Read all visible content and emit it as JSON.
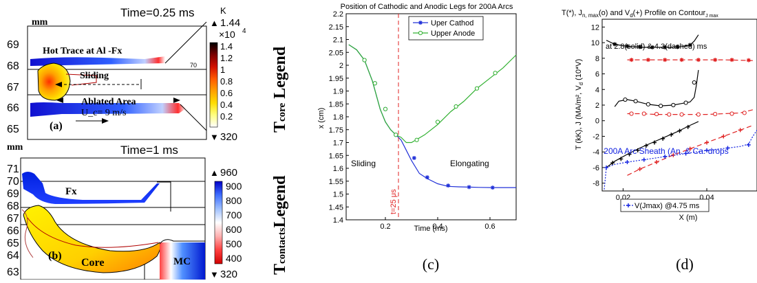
{
  "chart_data": [
    {
      "type": "heatmap",
      "panel": "(a)",
      "title": "Time=0.25 ms",
      "ylabel": "mm",
      "yticks": [
        "69",
        "68",
        "67",
        "66",
        "65"
      ],
      "annotations": [
        "Hot Trace at Al -Fx",
        "Sliding",
        "Ablated Area",
        "U_c= 9 m/s",
        "70"
      ],
      "colorbar": {
        "unit": "K",
        "max_label": "1.44",
        "multiplier": "×10",
        "exponent": "4",
        "ticks": [
          "1.4",
          "1.2",
          "1",
          "0.8",
          "0.6",
          "0.4",
          "0.2"
        ],
        "min_label": "320",
        "colors": [
          "#000000",
          "#7a0000",
          "#d21000",
          "#ff5a00",
          "#ffa000",
          "#ffdd00",
          "#ffff80",
          "#ffffff"
        ]
      }
    },
    {
      "type": "heatmap",
      "panel": "(b)",
      "title": "Time=1 ms",
      "ylabel": "mm",
      "yticks": [
        "71",
        "70",
        "69",
        "68",
        "67",
        "66",
        "65",
        "64",
        "63"
      ],
      "annotations": [
        "Fx",
        "Core",
        "MC"
      ],
      "colorbar": {
        "max_label": "960",
        "ticks": [
          "900",
          "800",
          "700",
          "600",
          "500",
          "400"
        ],
        "min_label": "320",
        "colors": [
          "#0000c8",
          "#3f6fff",
          "#9fc0ff",
          "#ffffff",
          "#ffb0b0",
          "#ff4040",
          "#d00000"
        ]
      }
    },
    {
      "type": "line",
      "panel": "(c)",
      "title": "Position of Cathodic and Anodic Legs for 200A Arcs",
      "xlabel": "Time (ms)",
      "ylabel": "x (cm)",
      "xlim": [
        0.05,
        0.7
      ],
      "ylim": [
        1.4,
        2.2
      ],
      "xticks": [
        0.2,
        0.4,
        0.6
      ],
      "yticks": [
        1.4,
        1.45,
        1.5,
        1.55,
        1.6,
        1.65,
        1.7,
        1.75,
        1.8,
        1.85,
        1.9,
        1.95,
        2,
        2.05,
        2.1,
        2.15,
        2.2
      ],
      "legend_position": "top-center",
      "vline": {
        "x": 0.25,
        "label": "t=25 μs",
        "color": "#e02020"
      },
      "annotations": [
        "Sliding",
        "Elongating"
      ],
      "series": [
        {
          "name": "Uper Cathod",
          "color": "#2030d8",
          "marker": "star",
          "x": [
            0.06,
            0.09,
            0.12,
            0.15,
            0.18,
            0.2,
            0.22,
            0.24,
            0.26,
            0.28,
            0.3,
            0.33,
            0.36,
            0.4,
            0.44,
            0.48,
            0.52,
            0.56,
            0.61,
            0.65,
            0.7
          ],
          "y": [
            2.08,
            2.06,
            2.02,
            1.94,
            1.83,
            1.78,
            1.75,
            1.73,
            1.71,
            1.67,
            1.63,
            1.58,
            1.56,
            1.54,
            1.53,
            1.528,
            1.527,
            1.526,
            1.525,
            1.525,
            1.525
          ],
          "markers_x": [
            0.12,
            0.16,
            0.2,
            0.24,
            0.31,
            0.36,
            0.44,
            0.52,
            0.61
          ],
          "markers_y": [
            2.02,
            1.93,
            1.83,
            1.73,
            1.64,
            1.565,
            1.533,
            1.527,
            1.525
          ]
        },
        {
          "name": "Upper Anode",
          "color": "#30b030",
          "marker": "circle",
          "x": [
            0.06,
            0.09,
            0.12,
            0.15,
            0.18,
            0.2,
            0.22,
            0.24,
            0.26,
            0.28,
            0.3,
            0.35,
            0.4,
            0.45,
            0.5,
            0.55,
            0.6,
            0.65,
            0.7
          ],
          "y": [
            2.08,
            2.06,
            2.02,
            1.94,
            1.83,
            1.78,
            1.75,
            1.73,
            1.72,
            1.7,
            1.7,
            1.73,
            1.77,
            1.82,
            1.86,
            1.91,
            1.95,
            1.99,
            2.04
          ],
          "markers_x": [
            0.12,
            0.16,
            0.2,
            0.24,
            0.32,
            0.4,
            0.47,
            0.55,
            0.62
          ],
          "markers_y": [
            2.02,
            1.93,
            1.83,
            1.73,
            1.71,
            1.78,
            1.84,
            1.91,
            1.97
          ]
        }
      ]
    },
    {
      "type": "line",
      "panel": "(d)",
      "title": "T(*), J",
      "title_sub1": "n, max",
      "title_mid": "(o) and V",
      "title_sub2": "d",
      "title_end": "(+) Profile on Contour",
      "title_sub3": "J max",
      "subtitle": "at 2.8(solid) & 4.3(dashed) ms",
      "xlabel": "X (m)",
      "ylabel": "T (kK), J (MA/m², V",
      "ylabel_sub": "d",
      "ylabel_end": " (10*V)",
      "xlim": [
        0.015,
        0.052
      ],
      "ylim": [
        -9,
        13
      ],
      "xticks": [
        0.02,
        0.04
      ],
      "yticks": [
        -8,
        -6,
        -4,
        -2,
        0,
        2,
        4,
        6,
        8,
        10,
        12
      ],
      "annotations": [
        "200A Arc Sheath (An. & Ca. drops"
      ],
      "legend": [
        "V(Jmax) @4.75 ms"
      ],
      "series": [
        {
          "name": "",
          "color": "#000000",
          "marker": "star",
          "dash": "solid",
          "x": [
            0.016,
            0.018,
            0.02,
            0.022,
            0.025,
            0.028,
            0.031,
            0.034,
            0.036,
            0.037,
            0.038
          ],
          "y": [
            10.3,
            9.8,
            9.6,
            9.5,
            9.4,
            9.4,
            9.4,
            9.5,
            9.7,
            10.2,
            11.0
          ],
          "markers_x": [
            0.018,
            0.021,
            0.024,
            0.027,
            0.03,
            0.033,
            0.036
          ],
          "markers_y": [
            9.8,
            9.55,
            9.45,
            9.4,
            9.4,
            9.45,
            9.7
          ]
        },
        {
          "name": "",
          "color": "#e02020",
          "marker": "star",
          "dash": "dashed",
          "x": [
            0.021,
            0.024,
            0.028,
            0.032,
            0.036,
            0.04,
            0.044,
            0.048,
            0.051
          ],
          "y": [
            7.8,
            7.8,
            7.8,
            7.8,
            7.8,
            7.8,
            7.8,
            7.75,
            7.7
          ],
          "markers_x": [
            0.022,
            0.026,
            0.03,
            0.034,
            0.038,
            0.042,
            0.046,
            0.05
          ],
          "markers_y": [
            7.8,
            7.8,
            7.8,
            7.8,
            7.8,
            7.8,
            7.8,
            7.75
          ]
        },
        {
          "name": "",
          "color": "#000000",
          "marker": "circle",
          "dash": "solid",
          "x": [
            0.018,
            0.019,
            0.021,
            0.023,
            0.026,
            0.029,
            0.032,
            0.034,
            0.036,
            0.037,
            0.0375,
            0.038
          ],
          "y": [
            1.8,
            2.5,
            2.7,
            2.5,
            2.1,
            1.9,
            2.0,
            2.2,
            2.4,
            3.0,
            4.5,
            6.5
          ],
          "markers_x": [
            0.0205,
            0.023,
            0.026,
            0.029,
            0.032,
            0.035,
            0.037
          ],
          "markers_y": [
            2.7,
            2.5,
            2.1,
            1.9,
            2.0,
            2.3,
            4.9
          ]
        },
        {
          "name": "",
          "color": "#e02020",
          "marker": "circle",
          "dash": "dashed",
          "x": [
            0.021,
            0.024,
            0.028,
            0.032,
            0.036,
            0.04,
            0.044,
            0.048,
            0.051
          ],
          "y": [
            0.9,
            0.9,
            0.8,
            0.8,
            0.8,
            0.8,
            0.9,
            1.0,
            1.4
          ],
          "markers_x": [
            0.022,
            0.025,
            0.028,
            0.031,
            0.034,
            0.038,
            0.042,
            0.046,
            0.049
          ],
          "markers_y": [
            0.9,
            0.9,
            0.85,
            0.8,
            0.8,
            0.8,
            0.85,
            0.9,
            1.0
          ]
        },
        {
          "name": "",
          "color": "#000000",
          "marker": "plus",
          "dash": "solid",
          "x": [
            0.016,
            0.018,
            0.021,
            0.024,
            0.027,
            0.03,
            0.033,
            0.036,
            0.038
          ],
          "y": [
            -6.0,
            -5.2,
            -4.3,
            -3.5,
            -2.8,
            -2.1,
            -1.4,
            -0.6,
            -0.1
          ],
          "markers_x": [
            0.0175,
            0.0195,
            0.0215,
            0.0235,
            0.0255,
            0.0275,
            0.0295,
            0.0315,
            0.0335,
            0.0355
          ],
          "markers_y": [
            -5.4,
            -4.9,
            -4.3,
            -3.8,
            -3.2,
            -2.8,
            -2.3,
            -1.8,
            -1.3,
            -0.8
          ]
        },
        {
          "name": "",
          "color": "#e02020",
          "marker": "plus",
          "dash": "dashed",
          "x": [
            0.021,
            0.024,
            0.028,
            0.032,
            0.036,
            0.04,
            0.044,
            0.048,
            0.051
          ],
          "y": [
            -7.0,
            -6.2,
            -5.3,
            -4.4,
            -3.6,
            -2.8,
            -2.0,
            -1.2,
            -0.6
          ],
          "markers_x": [
            0.024,
            0.028,
            0.032,
            0.036,
            0.04,
            0.044,
            0.048
          ],
          "markers_y": [
            -6.2,
            -5.3,
            -4.4,
            -3.6,
            -2.8,
            -2.0,
            -1.2
          ]
        },
        {
          "name": "V(Jmax) @4.75 ms",
          "color": "#1020e0",
          "marker": "plus",
          "dash": "dotted",
          "x": [
            0.0155,
            0.016,
            0.018,
            0.021,
            0.025,
            0.03,
            0.035,
            0.04,
            0.045,
            0.048,
            0.05,
            0.051,
            0.052
          ],
          "y": [
            -8.8,
            -6.0,
            -5.6,
            -5.3,
            -5.0,
            -4.6,
            -4.2,
            -3.8,
            -3.5,
            -3.3,
            -3.0,
            -2.0,
            -1.2
          ],
          "markers_x": [
            0.016,
            0.021,
            0.025,
            0.03,
            0.035,
            0.04,
            0.045,
            0.05
          ],
          "markers_y": [
            -6.0,
            -5.3,
            -5.0,
            -4.6,
            -4.2,
            -3.8,
            -3.5,
            -3.1
          ]
        }
      ]
    }
  ],
  "legend_labels": {
    "core_main": "T",
    "core_sub": "core",
    "core_word": " Legend",
    "contacts_main": "T",
    "contacts_sub": "contacts",
    "contacts_word": "Legend"
  },
  "panel_labels": {
    "c": "(c)",
    "d": "(d)"
  },
  "arrow_glyphs": {
    "up": "▲",
    "down": "▼"
  }
}
